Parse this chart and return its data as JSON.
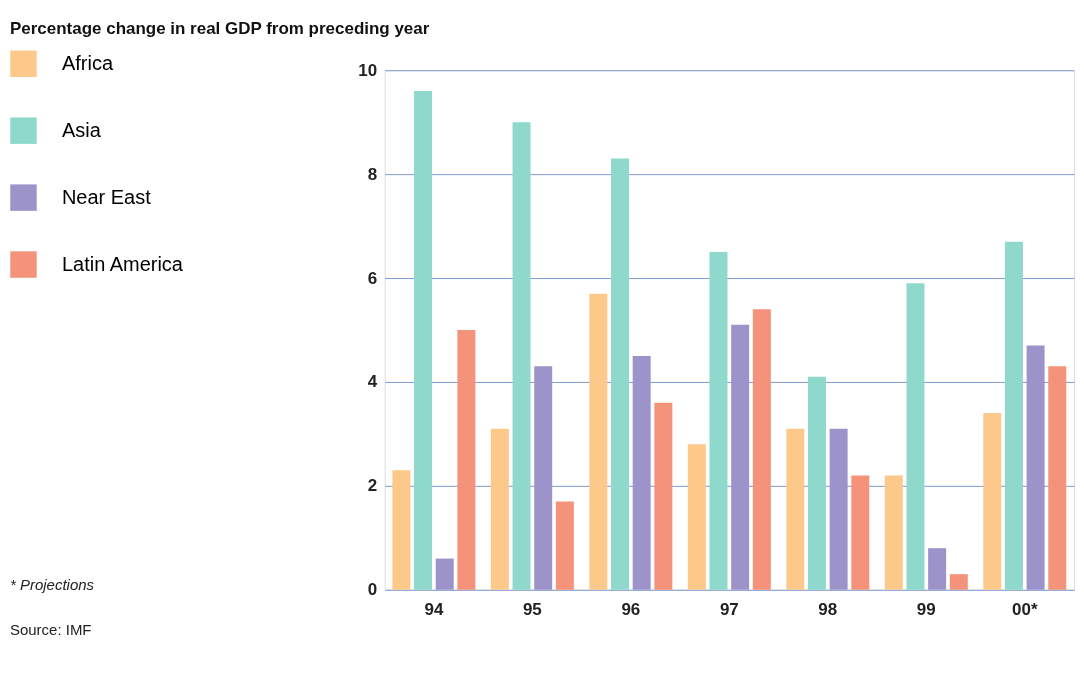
{
  "chart_data": {
    "type": "bar",
    "title": "Percentage change in real GDP from preceding year",
    "categories": [
      "94",
      "95",
      "96",
      "97",
      "98",
      "99",
      "00*"
    ],
    "series": [
      {
        "name": "Africa",
        "color": "#fdc98a",
        "values": [
          2.3,
          3.1,
          5.7,
          2.8,
          3.1,
          2.2,
          3.4
        ]
      },
      {
        "name": "Asia",
        "color": "#8fd8cc",
        "values": [
          9.6,
          9.0,
          8.3,
          6.5,
          4.1,
          5.9,
          6.7
        ]
      },
      {
        "name": "Near East",
        "color": "#9b93c9",
        "values": [
          0.6,
          4.3,
          4.5,
          5.1,
          3.1,
          0.8,
          4.7
        ]
      },
      {
        "name": "Latin America",
        "color": "#f4937a",
        "values": [
          5.0,
          1.7,
          3.6,
          5.4,
          2.2,
          0.3,
          4.3
        ]
      }
    ],
    "ylim": [
      0,
      10
    ],
    "yticks": [
      0,
      2,
      4,
      6,
      8,
      10
    ],
    "grid": "y",
    "legend": "left",
    "annotations": [
      "* Projections",
      "Source: IMF"
    ]
  }
}
